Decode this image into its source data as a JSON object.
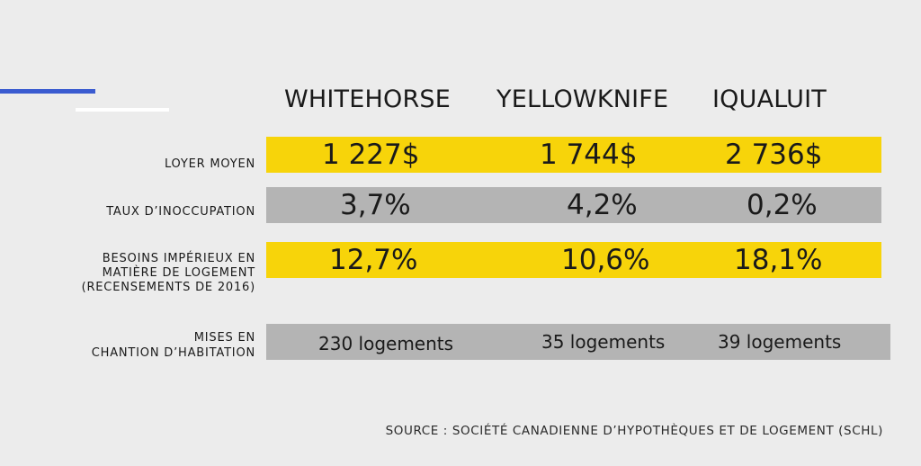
{
  "chart_data": {
    "type": "table",
    "columns": [
      "WHITEHORSE",
      "YELLOWKNIFE",
      "IQUALUIT"
    ],
    "rows": [
      {
        "label": "LOYER MOYEN",
        "values": [
          "1 227$",
          "1 744$",
          "2 736$"
        ],
        "band_color": "#f7d40a"
      },
      {
        "label": "TAUX D’INOCCUPATION",
        "values": [
          "3,7%",
          "4,2%",
          "0,2%"
        ],
        "band_color": "#b4b4b4"
      },
      {
        "label_lines": [
          "BESOINS IMPÉRIEUX EN",
          "MATIÈRE DE LOGEMENT",
          "(RECENSEMENTS DE 2016)"
        ],
        "values": [
          "12,7%",
          "10,6%",
          "18,1%"
        ],
        "band_color": "#f7d40a"
      },
      {
        "label_lines": [
          "MISES EN",
          "CHANTION D’HABITATION"
        ],
        "values": [
          "230 logements",
          "35 logements",
          "39 logements"
        ],
        "band_color": "#b4b4b4"
      }
    ],
    "source": "SOURCE : SOCIÉTÉ CANADIENNE D’HYPOTHÈQUES ET DE LOGEMENT (SCHL)"
  },
  "colors": {
    "background": "#ececec",
    "accent_blue": "#3a5bd0",
    "accent_white": "#ffffff",
    "yellow": "#f7d40a",
    "gray": "#b4b4b4"
  }
}
